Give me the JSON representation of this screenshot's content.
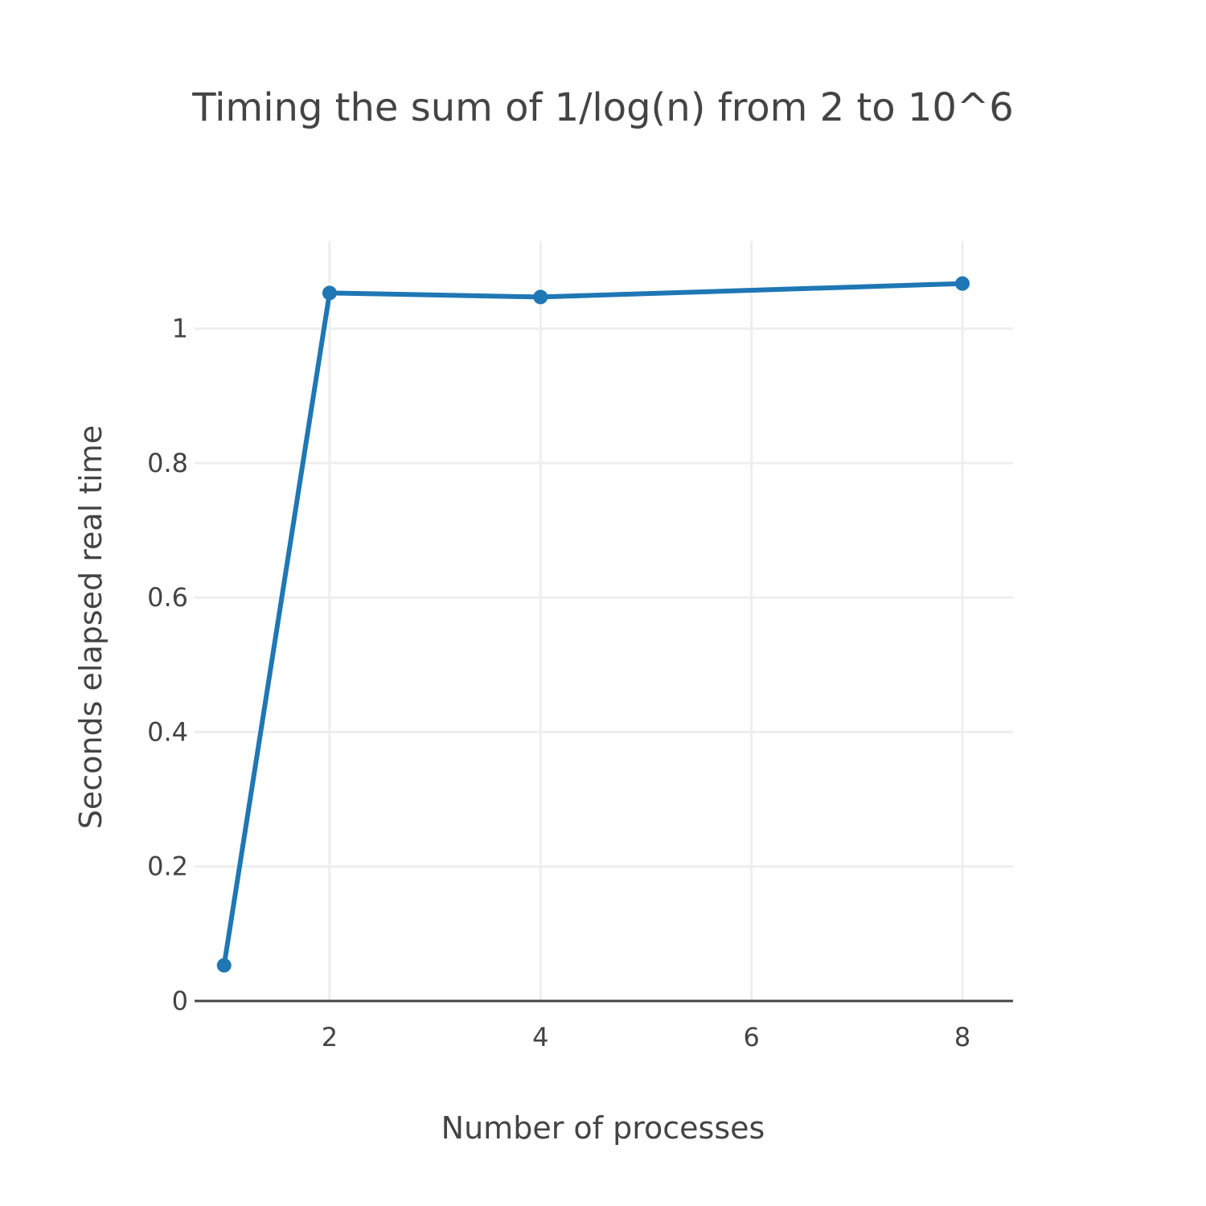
{
  "chart_data": {
    "type": "line",
    "title": "Timing the sum of 1/log(n) from 2 to 10^6",
    "xlabel": "Number of processes",
    "ylabel": "Seconds elapsed real time",
    "xlim": [
      0.72,
      8.48
    ],
    "ylim": [
      0,
      1.13
    ],
    "x_ticks": [
      2,
      4,
      6,
      8
    ],
    "y_ticks": [
      0,
      0.2,
      0.4,
      0.6,
      0.8,
      1
    ],
    "x_tick_labels": [
      "2",
      "4",
      "6",
      "8"
    ],
    "y_tick_labels": [
      "0",
      "0.2",
      "0.4",
      "0.6",
      "0.8",
      "1"
    ],
    "grid": true,
    "legend": "none",
    "series": [
      {
        "color": "#1f77b4",
        "x": [
          1,
          2,
          4,
          8
        ],
        "y": [
          0.053,
          1.053,
          1.047,
          1.067
        ]
      }
    ]
  }
}
